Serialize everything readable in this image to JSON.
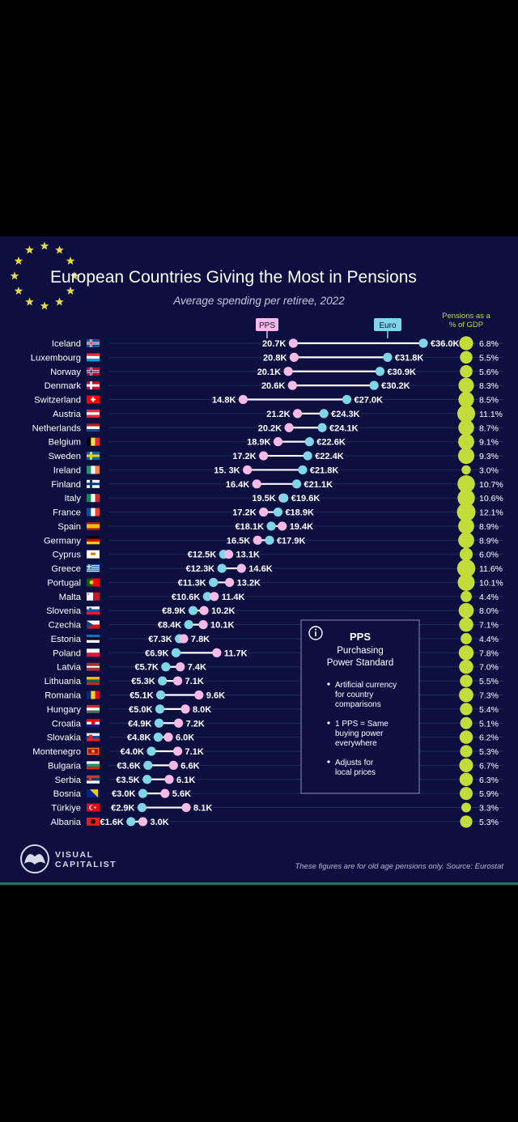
{
  "header": {
    "title": "European Countries Giving the Most in Pensions",
    "subtitle": "Average spending per retiree, 2022"
  },
  "legend": {
    "pps": "PPS",
    "euro": "Euro",
    "gdp_header_line1": "Pensions as a",
    "gdp_header_line2": "% of GDP"
  },
  "info_box": {
    "icon": "info-icon",
    "title_line1": "PPS",
    "title_line2": "Purchasing",
    "title_line3": "Power Standard",
    "bullets": [
      [
        "Artificial currency",
        "for country",
        "comparisons"
      ],
      [
        "1 PPS = Same",
        "buying power",
        "everywhere"
      ],
      [
        "Adjusts for",
        "local prices"
      ]
    ]
  },
  "footer": {
    "brand_line1": "VISUAL",
    "brand_line2": "CAPITALIST",
    "source": "These figures are for old age pensions only. Source: Eurostat"
  },
  "colors": {
    "background": "#0c0f3f",
    "pps": "#f7b9e6",
    "euro": "#7fd6e6",
    "gdp_bubble": "#c2dc3a",
    "star": "#e5d84a"
  },
  "chart_data": {
    "type": "dumbbell",
    "title": "European Countries Giving the Most in Pensions",
    "subtitle": "Average spending per retiree, 2022",
    "unit": "thousand",
    "series": [
      {
        "name": "PPS"
      },
      {
        "name": "Euro"
      },
      {
        "name": "Pensions as a % of GDP"
      }
    ],
    "rows": [
      {
        "country": "Iceland",
        "flag": "iceland",
        "pps": 20.7,
        "pps_label": "20.7K",
        "euro": 36.0,
        "euro_label": "€36.0K",
        "gdp": 6.8,
        "gdp_label": "6.8%"
      },
      {
        "country": "Luxembourg",
        "flag": "luxembourg",
        "pps": 20.8,
        "pps_label": "20.8K",
        "euro": 31.8,
        "euro_label": "€31.8K",
        "gdp": 5.5,
        "gdp_label": "5.5%"
      },
      {
        "country": "Norway",
        "flag": "norway",
        "pps": 20.1,
        "pps_label": "20.1K",
        "euro": 30.9,
        "euro_label": "€30.9K",
        "gdp": 5.6,
        "gdp_label": "5.6%"
      },
      {
        "country": "Denmark",
        "flag": "denmark",
        "pps": 20.6,
        "pps_label": "20.6K",
        "euro": 30.2,
        "euro_label": "€30.2K",
        "gdp": 8.3,
        "gdp_label": "8.3%"
      },
      {
        "country": "Switzerland",
        "flag": "switzerland",
        "pps": 14.8,
        "pps_label": "14.8K",
        "euro": 27.0,
        "euro_label": "€27.0K",
        "gdp": 8.5,
        "gdp_label": "8.5%"
      },
      {
        "country": "Austria",
        "flag": "austria",
        "pps": 21.2,
        "pps_label": "21.2K",
        "euro": 24.3,
        "euro_label": "€24.3K",
        "gdp": 11.1,
        "gdp_label": "11.1%"
      },
      {
        "country": "Netherlands",
        "flag": "netherlands",
        "pps": 20.2,
        "pps_label": "20.2K",
        "euro": 24.1,
        "euro_label": "€24.1K",
        "gdp": 8.7,
        "gdp_label": "8.7%"
      },
      {
        "country": "Belgium",
        "flag": "belgium",
        "pps": 18.9,
        "pps_label": "18.9K",
        "euro": 22.6,
        "euro_label": "€22.6K",
        "gdp": 9.1,
        "gdp_label": "9.1%"
      },
      {
        "country": "Sweden",
        "flag": "sweden",
        "pps": 17.2,
        "pps_label": "17.2K",
        "euro": 22.4,
        "euro_label": "€22.4K",
        "gdp": 9.3,
        "gdp_label": "9.3%"
      },
      {
        "country": "Ireland",
        "flag": "ireland",
        "pps": 15.3,
        "pps_label": "15. 3K",
        "euro": 21.8,
        "euro_label": "€21.8K",
        "gdp": 3.0,
        "gdp_label": "3.0%"
      },
      {
        "country": "Finland",
        "flag": "finland",
        "pps": 16.4,
        "pps_label": "16.4K",
        "euro": 21.1,
        "euro_label": "€21.1K",
        "gdp": 10.7,
        "gdp_label": "10.7%"
      },
      {
        "country": "Italy",
        "flag": "italy",
        "pps": 19.5,
        "pps_label": "19.5K",
        "euro": 19.6,
        "euro_label": "€19.6K",
        "gdp": 10.6,
        "gdp_label": "10.6%"
      },
      {
        "country": "France",
        "flag": "france",
        "pps": 17.2,
        "pps_label": "17.2K",
        "euro": 18.9,
        "euro_label": "€18.9K",
        "gdp": 12.1,
        "gdp_label": "12.1%"
      },
      {
        "country": "Spain",
        "flag": "spain",
        "pps": 19.4,
        "pps_label": "19.4K",
        "euro": 18.1,
        "euro_label": "€18.1K",
        "gdp": 8.9,
        "gdp_label": "8.9%"
      },
      {
        "country": "Germany",
        "flag": "germany",
        "pps": 16.5,
        "pps_label": "16.5K",
        "euro": 17.9,
        "euro_label": "€17.9K",
        "gdp": 8.9,
        "gdp_label": "8.9%"
      },
      {
        "country": "Cyprus",
        "flag": "cyprus",
        "pps": 13.1,
        "pps_label": "13.1K",
        "euro": 12.5,
        "euro_label": "€12.5K",
        "gdp": 6.0,
        "gdp_label": "6.0%"
      },
      {
        "country": "Greece",
        "flag": "greece",
        "pps": 14.6,
        "pps_label": "14.6K",
        "euro": 12.3,
        "euro_label": "€12.3K",
        "gdp": 11.6,
        "gdp_label": "11.6%"
      },
      {
        "country": "Portugal",
        "flag": "portugal",
        "pps": 13.2,
        "pps_label": "13.2K",
        "euro": 11.3,
        "euro_label": "€11.3K",
        "gdp": 10.1,
        "gdp_label": "10.1%"
      },
      {
        "country": "Malta",
        "flag": "malta",
        "pps": 11.4,
        "pps_label": "11.4K",
        "euro": 10.6,
        "euro_label": "€10.6K",
        "gdp": 4.4,
        "gdp_label": "4.4%"
      },
      {
        "country": "Slovenia",
        "flag": "slovenia",
        "pps": 10.2,
        "pps_label": "10.2K",
        "euro": 8.9,
        "euro_label": "€8.9K",
        "gdp": 8.0,
        "gdp_label": "8.0%"
      },
      {
        "country": "Czechia",
        "flag": "czechia",
        "pps": 10.1,
        "pps_label": "10.1K",
        "euro": 8.4,
        "euro_label": "€8.4K",
        "gdp": 7.1,
        "gdp_label": "7.1%"
      },
      {
        "country": "Estonia",
        "flag": "estonia",
        "pps": 7.8,
        "pps_label": "7.8K",
        "euro": 7.3,
        "euro_label": "€7.3K",
        "gdp": 4.4,
        "gdp_label": "4.4%"
      },
      {
        "country": "Poland",
        "flag": "poland",
        "pps": 11.7,
        "pps_label": "11.7K",
        "euro": 6.9,
        "euro_label": "€6.9K",
        "gdp": 7.8,
        "gdp_label": "7.8%"
      },
      {
        "country": "Latvia",
        "flag": "latvia",
        "pps": 7.4,
        "pps_label": "7.4K",
        "euro": 5.7,
        "euro_label": "€5.7K",
        "gdp": 7.0,
        "gdp_label": "7.0%"
      },
      {
        "country": "Lithuania",
        "flag": "lithuania",
        "pps": 7.1,
        "pps_label": "7.1K",
        "euro": 5.3,
        "euro_label": "€5.3K",
        "gdp": 5.5,
        "gdp_label": "5.5%"
      },
      {
        "country": "Romania",
        "flag": "romania",
        "pps": 9.6,
        "pps_label": "9.6K",
        "euro": 5.1,
        "euro_label": "€5.1K",
        "gdp": 7.3,
        "gdp_label": "7.3%"
      },
      {
        "country": "Hungary",
        "flag": "hungary",
        "pps": 8.0,
        "pps_label": "8.0K",
        "euro": 5.0,
        "euro_label": "€5.0K",
        "gdp": 5.4,
        "gdp_label": "5.4%"
      },
      {
        "country": "Croatia",
        "flag": "croatia",
        "pps": 7.2,
        "pps_label": "7.2K",
        "euro": 4.9,
        "euro_label": "€4.9K",
        "gdp": 5.1,
        "gdp_label": "5.1%"
      },
      {
        "country": "Slovakia",
        "flag": "slovakia",
        "pps": 6.0,
        "pps_label": "6.0K",
        "euro": 4.8,
        "euro_label": "€4.8K",
        "gdp": 6.2,
        "gdp_label": "6.2%"
      },
      {
        "country": "Montenegro",
        "flag": "montenegro",
        "pps": 7.1,
        "pps_label": "7.1K",
        "euro": 4.0,
        "euro_label": "€4.0K",
        "gdp": 5.3,
        "gdp_label": "5.3%"
      },
      {
        "country": "Bulgaria",
        "flag": "bulgaria",
        "pps": 6.6,
        "pps_label": "6.6K",
        "euro": 3.6,
        "euro_label": "€3.6K",
        "gdp": 6.7,
        "gdp_label": "6.7%"
      },
      {
        "country": "Serbia",
        "flag": "serbia",
        "pps": 6.1,
        "pps_label": "6.1K",
        "euro": 3.5,
        "euro_label": "€3.5K",
        "gdp": 6.3,
        "gdp_label": "6.3%"
      },
      {
        "country": "Bosnia",
        "flag": "bosnia",
        "pps": 5.6,
        "pps_label": "5.6K",
        "euro": 3.0,
        "euro_label": "€3.0K",
        "gdp": 5.9,
        "gdp_label": "5.9%"
      },
      {
        "country": "Türkiye",
        "flag": "turkiye",
        "pps": 8.1,
        "pps_label": "8.1K",
        "euro": 2.9,
        "euro_label": "€2.9K",
        "gdp": 3.3,
        "gdp_label": "3.3%"
      },
      {
        "country": "Albania",
        "flag": "albania",
        "pps": 3.0,
        "pps_label": "3.0K",
        "euro": 1.6,
        "euro_label": "€1.6K",
        "gdp": 5.3,
        "gdp_label": "5.3%"
      }
    ]
  }
}
